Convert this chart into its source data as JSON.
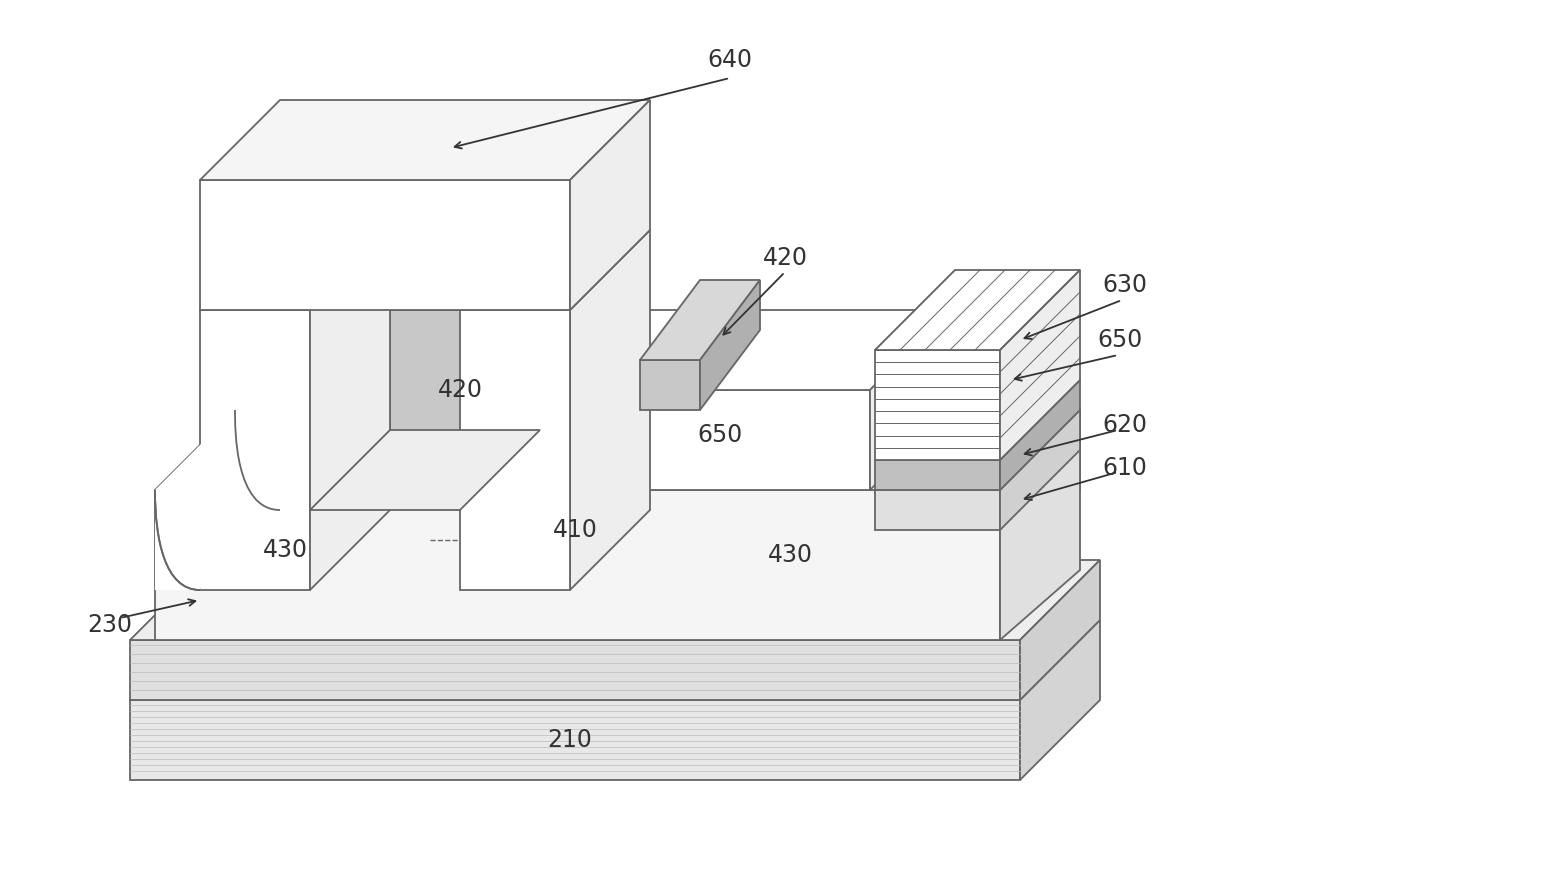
{
  "bg_color": "#ffffff",
  "lc": "#666666",
  "lw": 1.3,
  "fs": 17,
  "label_color": "#333333",
  "hatch_color": "#aaaaaa",
  "colors": {
    "white": "#ffffff",
    "very_light": "#f5f5f5",
    "light": "#eeeeee",
    "medium_light": "#e0e0e0",
    "medium": "#d0d0d0",
    "medium_dark": "#c0c0c0",
    "dark": "#b0b0b0",
    "dotted_light": "#e8e8e8",
    "dotted_dark": "#d4d4d4",
    "gate_fill": "#f0f0f0",
    "box420_front": "#c8c8c8",
    "box420_top": "#d8d8d8",
    "box420_right": "#b0b0b0"
  }
}
